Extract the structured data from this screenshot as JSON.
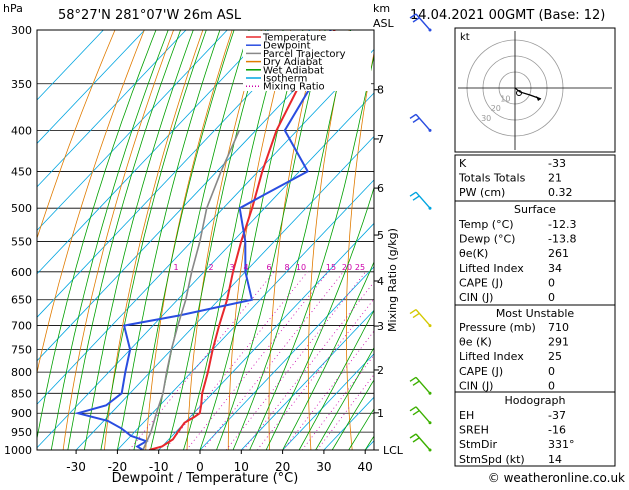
{
  "header": {
    "location": "58°27'N  281°07'W  26m  ASL",
    "datetime": "14.04.2021  00GMT  (Base: 12)",
    "hpa_label": "hPa",
    "km_label": "km",
    "asl_label": "ASL"
  },
  "footer": {
    "xlabel": "Dewpoint / Temperature (°C)",
    "credit": "© weatheronline.co.uk"
  },
  "chart_data": {
    "type": "line",
    "title": "Skew-T log-P diagram",
    "xlabel": "Dewpoint / Temperature (°C)",
    "ylabel": "hPa",
    "right_axis_label": "Mixing Ratio (g/kg)",
    "x_ticks": [
      -30,
      -20,
      -10,
      0,
      10,
      20,
      30,
      40
    ],
    "pressure_levels": [
      300,
      350,
      400,
      450,
      500,
      550,
      600,
      650,
      700,
      750,
      800,
      850,
      900,
      950,
      1000
    ],
    "pressure_range": [
      1000,
      300
    ],
    "km_ticks": [
      {
        "label": "8",
        "p": 356
      },
      {
        "label": "7",
        "p": 410
      },
      {
        "label": "6",
        "p": 472
      },
      {
        "label": "5",
        "p": 540
      },
      {
        "label": "4",
        "p": 616
      },
      {
        "label": "3",
        "p": 701
      },
      {
        "label": "2",
        "p": 795
      },
      {
        "label": "1",
        "p": 899
      },
      {
        "label": "LCL",
        "p": 1000
      }
    ],
    "mixing_ratio_labels": [
      "1",
      "2",
      "3",
      "4",
      "6",
      "8",
      "10",
      "15",
      "20",
      "25"
    ],
    "legend": [
      "Temperature",
      "Dewpoint",
      "Parcel Trajectory",
      "Dry Adiabat",
      "Wet Adiabat",
      "Isotherm",
      "Mixing Ratio"
    ],
    "legend_colors": [
      "#e8282c",
      "#2a4de0",
      "#888888",
      "#e07b00",
      "#00a000",
      "#00a5e0",
      "#cc00aa"
    ],
    "series": [
      {
        "name": "Temperature",
        "color": "#e8282c",
        "points": [
          [
            1000,
            -12.3
          ],
          [
            990,
            -10
          ],
          [
            970,
            -9
          ],
          [
            950,
            -9.5
          ],
          [
            925,
            -10
          ],
          [
            910,
            -9
          ],
          [
            900,
            -8.5
          ],
          [
            880,
            -10
          ],
          [
            850,
            -12.5
          ],
          [
            800,
            -16
          ],
          [
            750,
            -20
          ],
          [
            700,
            -24
          ],
          [
            650,
            -28
          ],
          [
            600,
            -33
          ],
          [
            550,
            -38
          ],
          [
            500,
            -43
          ],
          [
            450,
            -49
          ],
          [
            400,
            -55
          ],
          [
            350,
            -60
          ],
          [
            300,
            -64
          ]
        ]
      },
      {
        "name": "Dewpoint",
        "color": "#2a4de0",
        "points": [
          [
            1000,
            -13.8
          ],
          [
            990,
            -16
          ],
          [
            975,
            -15
          ],
          [
            960,
            -20
          ],
          [
            940,
            -24
          ],
          [
            920,
            -29
          ],
          [
            900,
            -38
          ],
          [
            880,
            -33
          ],
          [
            850,
            -32
          ],
          [
            800,
            -36
          ],
          [
            750,
            -40
          ],
          [
            700,
            -47
          ],
          [
            680,
            -36
          ],
          [
            650,
            -22
          ],
          [
            600,
            -30
          ],
          [
            550,
            -37
          ],
          [
            500,
            -46
          ],
          [
            480,
            -43
          ],
          [
            450,
            -38
          ],
          [
            400,
            -53
          ],
          [
            350,
            -57
          ],
          [
            300,
            -65
          ]
        ]
      },
      {
        "name": "Parcel Trajectory",
        "color": "#888888",
        "points": [
          [
            1000,
            -13.8
          ],
          [
            950,
            -16
          ],
          [
            900,
            -19
          ],
          [
            850,
            -22
          ],
          [
            800,
            -26
          ],
          [
            750,
            -30
          ],
          [
            700,
            -34
          ],
          [
            650,
            -38
          ],
          [
            600,
            -43
          ],
          [
            550,
            -48
          ],
          [
            500,
            -54
          ],
          [
            450,
            -59
          ],
          [
            400,
            -64
          ]
        ]
      }
    ],
    "hodograph": {
      "label": "kt",
      "ring_labels": [
        "10",
        "20",
        "30"
      ],
      "storm_motion": {
        "dir_deg": 331,
        "speed_kt": 14
      }
    },
    "wind_barbs_colors": [
      "#2a4de0",
      "#00a5e0",
      "#d4c800",
      "#3cb000"
    ]
  },
  "indices": {
    "top": [
      {
        "label": "K",
        "value": "-33"
      },
      {
        "label": "Totals Totals",
        "value": "21"
      },
      {
        "label": "PW (cm)",
        "value": "0.32"
      }
    ],
    "surface": {
      "title": "Surface",
      "rows": [
        {
          "label": "Temp (°C)",
          "value": "-12.3"
        },
        {
          "label": "Dewp (°C)",
          "value": "-13.8"
        },
        {
          "label": "θe(K)",
          "value": "261"
        },
        {
          "label": "Lifted Index",
          "value": "34"
        },
        {
          "label": "CAPE (J)",
          "value": "0"
        },
        {
          "label": "CIN (J)",
          "value": "0"
        }
      ]
    },
    "most_unstable": {
      "title": "Most Unstable",
      "rows": [
        {
          "label": "Pressure (mb)",
          "value": "710"
        },
        {
          "label": "θe (K)",
          "value": "291"
        },
        {
          "label": "Lifted Index",
          "value": "25"
        },
        {
          "label": "CAPE (J)",
          "value": "0"
        },
        {
          "label": "CIN (J)",
          "value": "0"
        }
      ]
    },
    "hodograph": {
      "title": "Hodograph",
      "rows": [
        {
          "label": "EH",
          "value": "-37"
        },
        {
          "label": "SREH",
          "value": "-16"
        },
        {
          "label": "StmDir",
          "value": "331°"
        },
        {
          "label": "StmSpd (kt)",
          "value": "14"
        }
      ]
    }
  }
}
